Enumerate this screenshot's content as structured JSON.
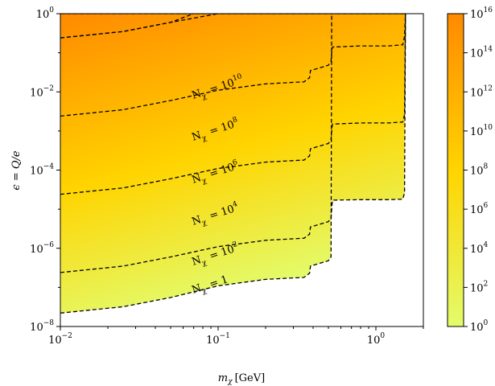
{
  "chart_data": {
    "type": "heatmap",
    "xlabel_var": "m",
    "xlabel_sub": "χ",
    "xlabel_unit": "[GeV]",
    "ylabel_var": "ϵ = Q/e",
    "x_scale": "log",
    "y_scale": "log",
    "xlim": [
      0.01,
      2.0
    ],
    "ylim": [
      1e-08,
      1
    ],
    "x_ticks": [
      {
        "value": 0.01,
        "base": "10",
        "exp": "−2"
      },
      {
        "value": 0.1,
        "base": "10",
        "exp": "−1"
      },
      {
        "value": 1,
        "base": "10",
        "exp": "0"
      }
    ],
    "y_ticks": [
      {
        "value": 1e-08,
        "base": "10",
        "exp": "−8"
      },
      {
        "value": 1e-06,
        "base": "10",
        "exp": "−6"
      },
      {
        "value": 0.0001,
        "base": "10",
        "exp": "−4"
      },
      {
        "value": 0.01,
        "base": "10",
        "exp": "−2"
      },
      {
        "value": 1,
        "base": "10",
        "exp": "0"
      }
    ],
    "colorbar": {
      "scale": "log",
      "range": [
        1,
        1e+16
      ],
      "color_low": "#e3fb6b",
      "color_mid": "#ffd400",
      "color_high": "#ff8a00",
      "ticks": [
        {
          "value": 1,
          "base": "10",
          "exp": "0"
        },
        {
          "value": 100.0,
          "base": "10",
          "exp": "2"
        },
        {
          "value": 10000.0,
          "base": "10",
          "exp": "4"
        },
        {
          "value": 1000000.0,
          "base": "10",
          "exp": "6"
        },
        {
          "value": 100000000.0,
          "base": "10",
          "exp": "8"
        },
        {
          "value": 10000000000.0,
          "base": "10",
          "exp": "10"
        },
        {
          "value": 1000000000000.0,
          "base": "10",
          "exp": "12"
        },
        {
          "value": 100000000000000.0,
          "base": "10",
          "exp": "14"
        },
        {
          "value": 1e+16,
          "base": "10",
          "exp": "16"
        }
      ]
    },
    "contours": [
      {
        "label_main": "N",
        "label_sub": "χ",
        "label_rhs": "= 1",
        "label_base": "",
        "label_exp": "",
        "level": 1,
        "points": [
          [
            0.01,
            2.2e-08
          ],
          [
            0.025,
            3.2e-08
          ],
          [
            0.05,
            5.5e-08
          ],
          [
            0.1,
            1.1e-07
          ],
          [
            0.2,
            1.6e-07
          ],
          [
            0.3,
            1.75e-07
          ],
          [
            0.35,
            1.8e-07
          ],
          [
            0.38,
            2.3e-07
          ],
          [
            0.385,
            3.5e-07
          ],
          [
            0.5,
            4.8e-07
          ],
          [
            0.52,
            6e-07
          ],
          [
            0.525,
            1.0
          ]
        ]
      },
      {
        "label_main": "N",
        "label_sub": "χ",
        "label_rhs": "= ",
        "label_base": "10",
        "label_exp": "2",
        "level": 100,
        "points": [
          [
            0.01,
            2.4e-07
          ],
          [
            0.025,
            3.5e-07
          ],
          [
            0.05,
            6e-07
          ],
          [
            0.1,
            1.1e-06
          ],
          [
            0.2,
            1.6e-06
          ],
          [
            0.3,
            1.75e-06
          ],
          [
            0.35,
            1.8e-06
          ],
          [
            0.38,
            2.3e-06
          ],
          [
            0.385,
            3.5e-06
          ],
          [
            0.5,
            4.8e-06
          ],
          [
            0.52,
            6e-06
          ],
          [
            0.525,
            1e-05
          ],
          [
            0.53,
            1.7e-05
          ],
          [
            0.8,
            1.75e-05
          ],
          [
            1.2,
            1.75e-05
          ],
          [
            1.48,
            1.8e-05
          ],
          [
            1.52,
            2.6e-05
          ],
          [
            1.54,
            1.0
          ]
        ]
      },
      {
        "label_main": "N",
        "label_sub": "χ",
        "label_rhs": "= ",
        "label_base": "10",
        "label_exp": "4",
        "level": 10000,
        "points": [
          [
            0.01,
            2.4e-05
          ],
          [
            0.025,
            3.5e-05
          ],
          [
            0.05,
            6e-05
          ],
          [
            0.1,
            0.00011
          ],
          [
            0.2,
            0.00016
          ],
          [
            0.3,
            0.000175
          ],
          [
            0.35,
            0.00018
          ],
          [
            0.38,
            0.00023
          ],
          [
            0.385,
            0.00035
          ],
          [
            0.5,
            0.00048
          ],
          [
            0.52,
            0.0006
          ],
          [
            0.525,
            0.001
          ],
          [
            0.53,
            0.0015
          ],
          [
            0.8,
            0.0016
          ],
          [
            1.2,
            0.0016
          ],
          [
            1.48,
            0.0017
          ],
          [
            1.52,
            0.0026
          ],
          [
            1.54,
            1.0
          ]
        ]
      },
      {
        "label_main": "N",
        "label_sub": "χ",
        "label_rhs": "= ",
        "label_base": "10",
        "label_exp": "6",
        "level": 1000000,
        "points": [
          [
            0.01,
            0.0024
          ],
          [
            0.025,
            0.0035
          ],
          [
            0.05,
            0.006
          ],
          [
            0.1,
            0.011
          ],
          [
            0.2,
            0.016
          ],
          [
            0.3,
            0.0175
          ],
          [
            0.35,
            0.018
          ],
          [
            0.38,
            0.023
          ],
          [
            0.385,
            0.035
          ],
          [
            0.5,
            0.048
          ],
          [
            0.52,
            0.06
          ],
          [
            0.525,
            0.1
          ],
          [
            0.53,
            0.14
          ],
          [
            0.8,
            0.15
          ],
          [
            1.2,
            0.15
          ],
          [
            1.48,
            0.16
          ],
          [
            1.52,
            0.26
          ],
          [
            1.54,
            1.0
          ]
        ]
      },
      {
        "label_main": "N",
        "label_sub": "χ",
        "label_rhs": "= ",
        "label_base": "10",
        "label_exp": "8",
        "level": 100000000,
        "points": [
          [
            0.01,
            0.24
          ],
          [
            0.025,
            0.35
          ],
          [
            0.05,
            0.6
          ],
          [
            0.07,
            1.0
          ]
        ]
      },
      {
        "label_main": "N",
        "label_sub": "χ",
        "label_rhs": "= ",
        "label_base": "10",
        "label_exp": "10",
        "level": 10000000000,
        "points": []
      }
    ],
    "allowed_boundary": [
      [
        0.01,
        1e-08
      ],
      [
        0.525,
        1e-08
      ],
      [
        0.525,
        1e-05
      ],
      [
        0.8,
        1e-05
      ],
      [
        1.5,
        1e-05
      ],
      [
        1.55,
        1.0
      ],
      [
        0.01,
        1.0
      ]
    ]
  }
}
